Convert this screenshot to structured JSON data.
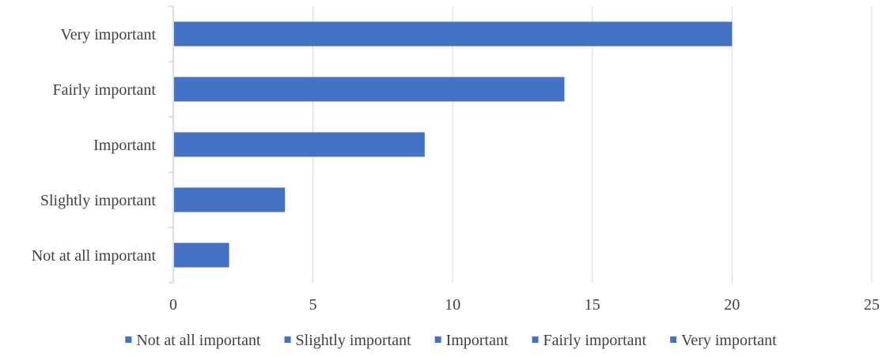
{
  "chart_data": {
    "type": "bar",
    "orientation": "horizontal",
    "categories": [
      "Not at all important",
      "Slightly important",
      "Important",
      "Fairly important",
      "Very important"
    ],
    "values": [
      2,
      4,
      9,
      14,
      20
    ],
    "xlim": [
      0,
      25
    ],
    "xticks": [
      0,
      5,
      10,
      15,
      20,
      25
    ],
    "grid": "vertical",
    "legend": {
      "position": "bottom",
      "entries": [
        "Not at all important",
        "Slightly important",
        "Important",
        "Fairly important",
        "Very important"
      ]
    },
    "colors": {
      "bar": "#4472C4",
      "grid": "#D9D9D9",
      "axis": "#BFBFBF",
      "text": "#404040"
    }
  }
}
